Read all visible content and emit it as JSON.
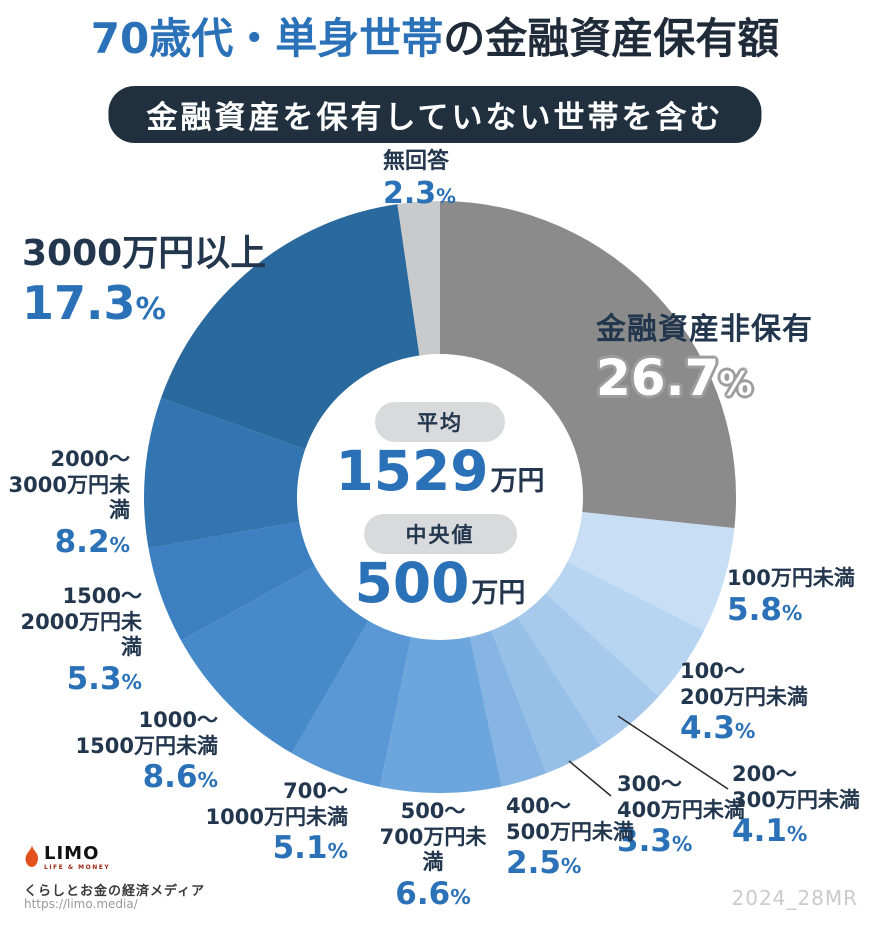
{
  "header": {
    "title_highlight": "70歳代・単身世帯",
    "title_rest": "の金融資産保有額",
    "badge": "金融資産を保有していない世帯を含む"
  },
  "center": {
    "avg_label": "平均",
    "avg_value": "1529",
    "avg_unit": "万円",
    "median_label": "中央値",
    "median_value": "500",
    "median_unit": "万円"
  },
  "footer": {
    "logo_text": "LIMO",
    "logo_sub": "LIFE & MONEY",
    "tagline": "くらしとお金の経済メディア",
    "url": "https://limo.media/",
    "watermark": "2024_28MR"
  },
  "palette": {
    "accent": "#2b71b8",
    "navy": "#22364d",
    "title_dark": "#1f2b39",
    "badge_bg": "#20303f",
    "pill_bg": "#d9dadc",
    "watermark": "#cbcbcb",
    "url_gray": "#9a9a9a",
    "line": "#2b2b2b",
    "logo_orange": "#e4511c",
    "logo_red": "#a02b16",
    "nonholding_outline": "#9d9d9d"
  },
  "chart_data": {
    "type": "pie",
    "subtype": "donut",
    "title": "70歳代・単身世帯の金融資産保有額",
    "subtitle": "金融資産を保有していない世帯を含む",
    "unit": "%",
    "start_angle": "top",
    "direction": "clockwise",
    "center_stats": {
      "平均": "1529万円",
      "中央値": "500万円"
    },
    "slices": [
      {
        "key": "non-holding",
        "label": "金融資産非保有",
        "display_label": "金融資産非保有",
        "value": 26.7,
        "percent": "26.7%",
        "color": "#8b8b8b"
      },
      {
        "key": "under-100",
        "label": "100万円未満",
        "display_label": "100万円未満",
        "value": 5.8,
        "percent": "5.8%",
        "color": "#c7def5"
      },
      {
        "key": "100-200",
        "label": "100〜200万円未満",
        "display_label": "100〜\n200万円未満",
        "value": 4.3,
        "percent": "4.3%",
        "color": "#b7d4f0"
      },
      {
        "key": "200-300",
        "label": "200〜300万円未満",
        "display_label": "200〜\n300万円未満",
        "value": 4.1,
        "percent": "4.1%",
        "color": "#a7caec"
      },
      {
        "key": "300-400",
        "label": "300〜400万円未満",
        "display_label": "300〜\n400万円未満",
        "value": 3.3,
        "percent": "3.3%",
        "color": "#97c0e8"
      },
      {
        "key": "400-500",
        "label": "400〜500万円未満",
        "display_label": "400〜\n500万円未満",
        "value": 2.5,
        "percent": "2.5%",
        "color": "#86b5e3"
      },
      {
        "key": "500-700",
        "label": "500〜700万円未満",
        "display_label": "500〜\n700万円未満",
        "value": 6.6,
        "percent": "6.6%",
        "color": "#6ca6dd"
      },
      {
        "key": "700-1000",
        "label": "700〜1000万円未満",
        "display_label": "700〜\n1000万円未満",
        "value": 5.1,
        "percent": "5.1%",
        "color": "#5997d5"
      },
      {
        "key": "1000-1500",
        "label": "1000〜1500万円未満",
        "display_label": "1000〜\n1500万円未満",
        "value": 8.6,
        "percent": "8.6%",
        "color": "#478aca"
      },
      {
        "key": "1500-2000",
        "label": "1500〜2000万円未満",
        "display_label": "1500〜\n2000万円未満",
        "value": 5.3,
        "percent": "5.3%",
        "color": "#3d80c1"
      },
      {
        "key": "2000-3000",
        "label": "2000〜3000万円未満",
        "display_label": "2000〜\n3000万円未満",
        "value": 8.2,
        "percent": "8.2%",
        "color": "#3275b1"
      },
      {
        "key": "3000-plus",
        "label": "3000万円以上",
        "display_label": "3000万円以上",
        "value": 17.3,
        "percent": "17.3%",
        "color": "#2a699e"
      },
      {
        "key": "no-answer",
        "label": "無回答",
        "display_label": "無回答",
        "value": 2.3,
        "percent": "2.3%",
        "color": "#c9cacb"
      }
    ]
  }
}
